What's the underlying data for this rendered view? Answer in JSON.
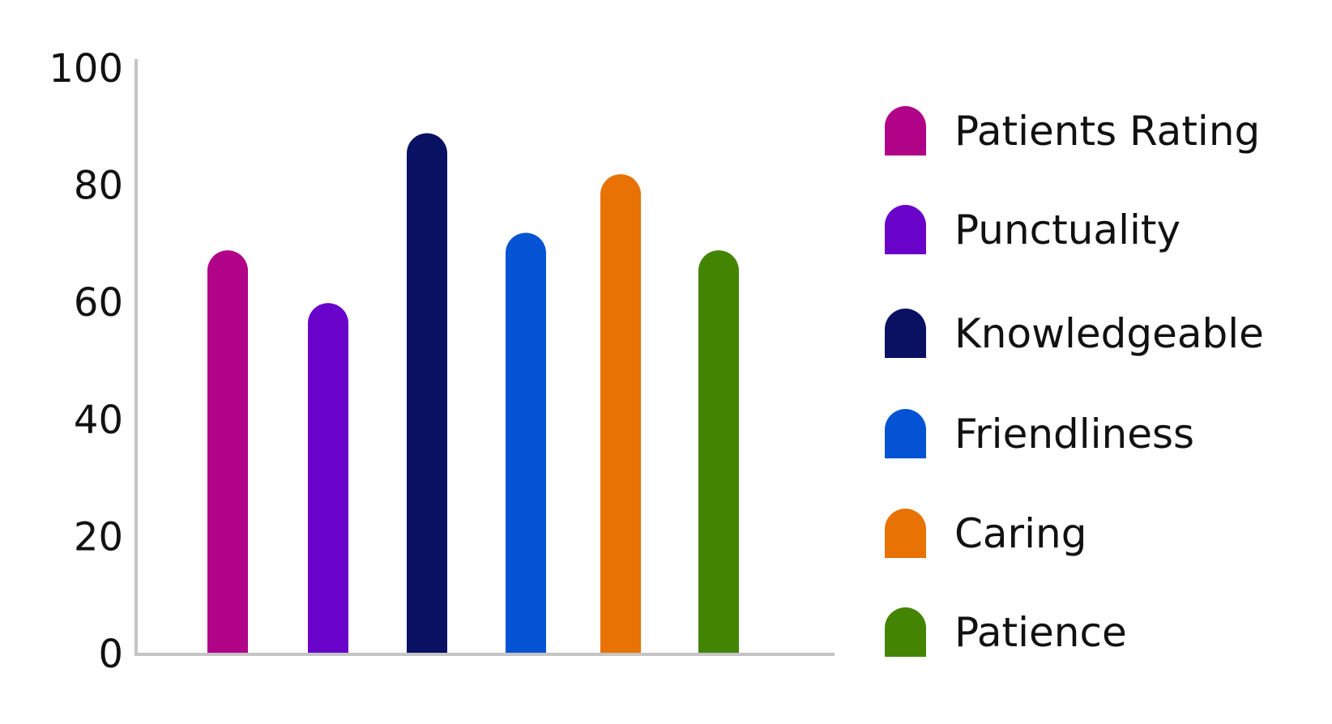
{
  "chart_data": {
    "type": "bar",
    "title": "",
    "xlabel": "",
    "ylabel": "",
    "ylim": [
      0,
      100
    ],
    "yticks": [
      "0",
      "20",
      "40",
      "60",
      "80",
      "100"
    ],
    "grid": false,
    "legend_position": "right",
    "series": [
      {
        "name": "Patients Rating",
        "value": 69,
        "color": "#B10388"
      },
      {
        "name": "Punctuality",
        "value": 60,
        "color": "#6A03C9"
      },
      {
        "name": "Knowledgeable",
        "value": 89,
        "color": "#0A1062"
      },
      {
        "name": "Friendliness",
        "value": 72,
        "color": "#0353D4"
      },
      {
        "name": "Caring",
        "value": 82,
        "color": "#E87203"
      },
      {
        "name": "Patience",
        "value": 69,
        "color": "#438503"
      }
    ]
  }
}
